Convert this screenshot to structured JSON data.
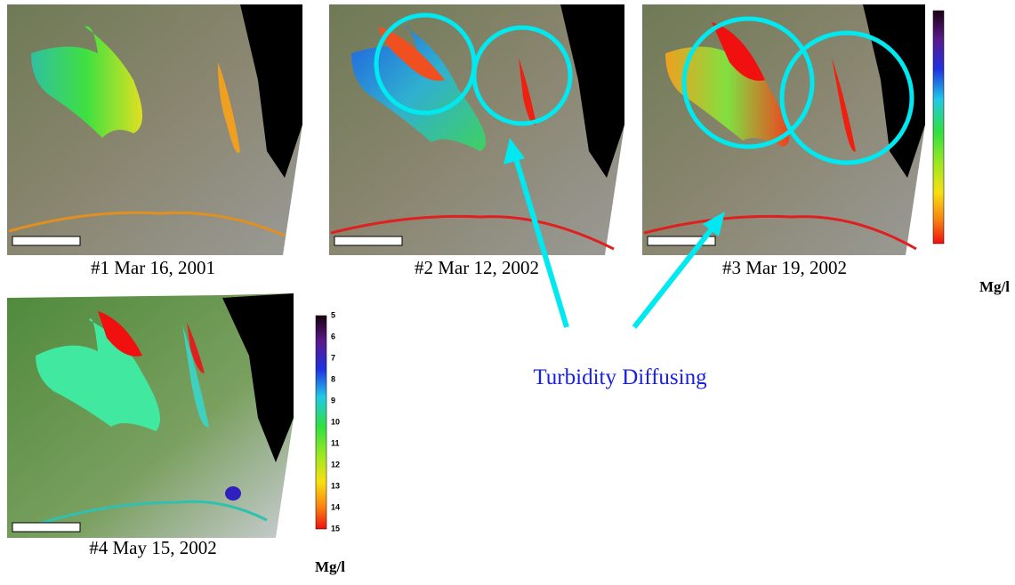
{
  "panels": [
    {
      "caption": "#1 Mar 16, 2001"
    },
    {
      "caption": "#2 Mar 12, 2002"
    },
    {
      "caption": "#3 Mar 19, 2002"
    },
    {
      "caption": "#4 May 15, 2002"
    }
  ],
  "colorbar_top": {
    "unit": "Mg/l"
  },
  "colorbar_bottom": {
    "ticks": [
      5,
      6,
      7,
      8,
      9,
      10,
      11,
      12,
      13,
      14,
      15
    ],
    "unit": "Mg/l"
  },
  "annotation": "Turbidity Diffusing"
}
